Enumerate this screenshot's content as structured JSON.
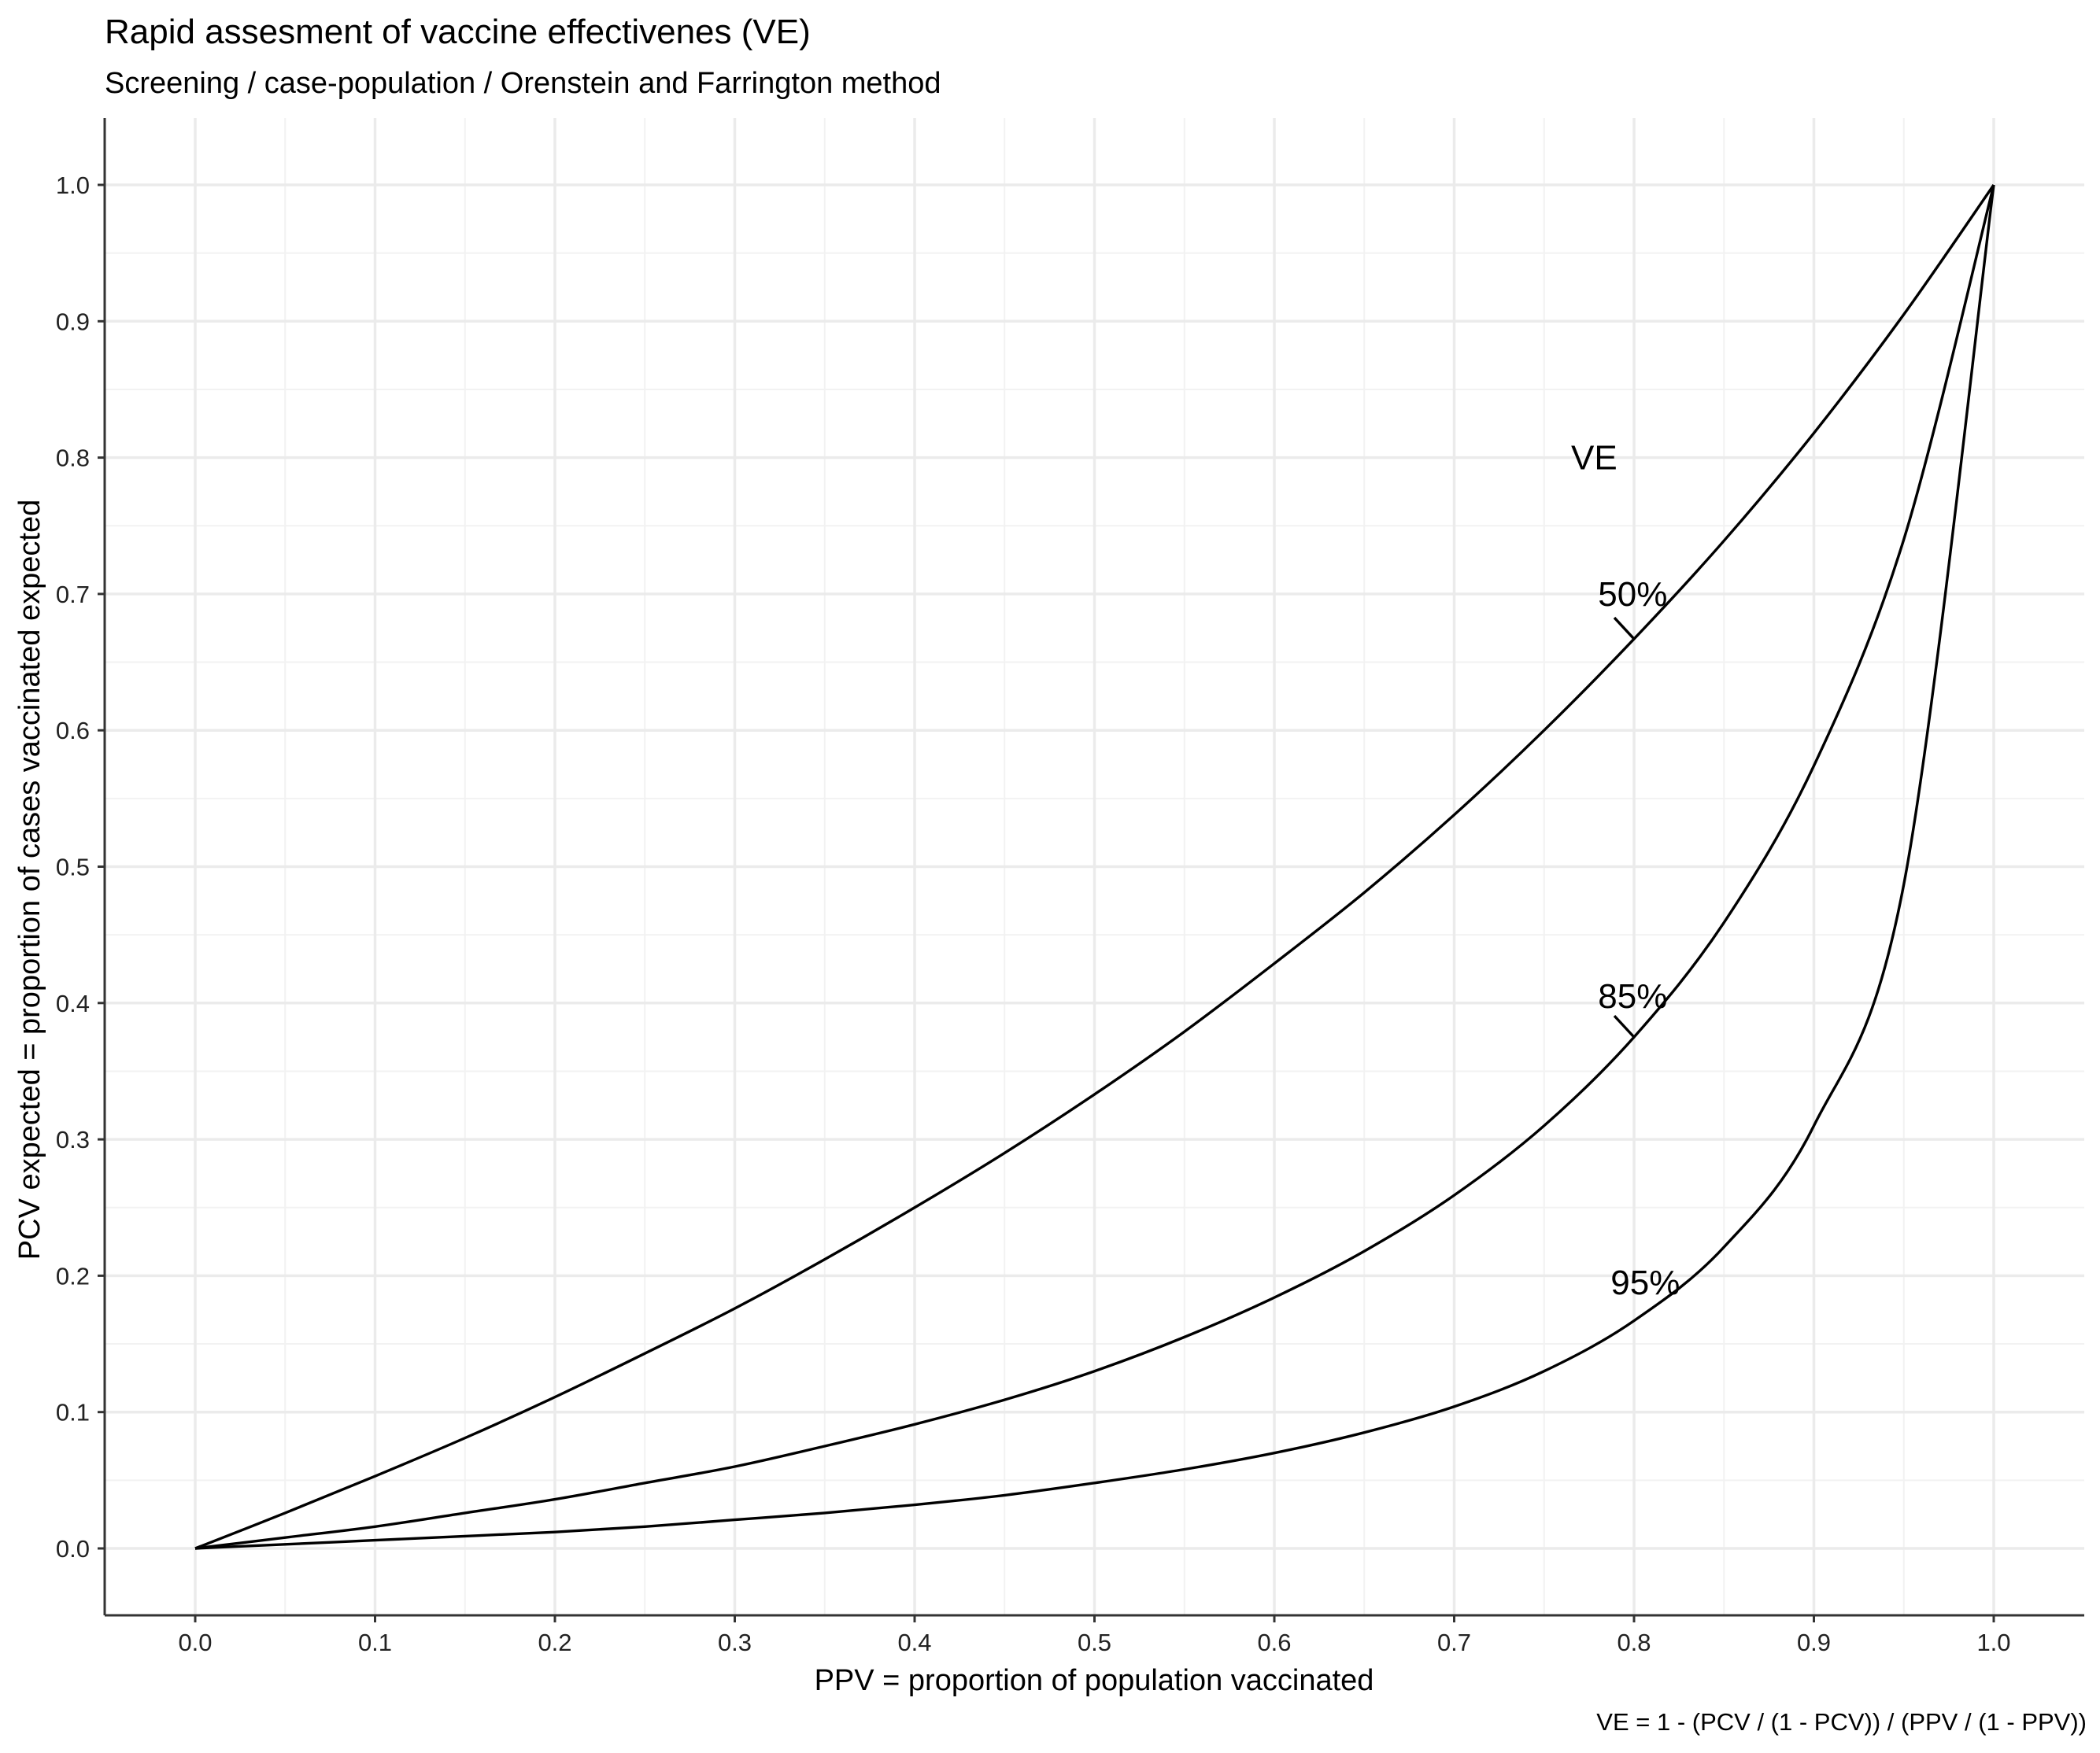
{
  "chart_data": {
    "type": "line",
    "title": "Rapid assesment of vaccine effectivenes (VE)",
    "subtitle": "Screening / case-population / Orenstein and Farrington method",
    "xlabel": "PPV = proportion of population vaccinated",
    "ylabel": "PCV expected = proportion of cases vaccinated expected",
    "caption": "VE = 1 - (PCV / (1 - PCV)) / (PPV / (1 - PPV))",
    "xlim": [
      0,
      1
    ],
    "ylim": [
      0,
      1
    ],
    "x_ticks": [
      "0.0",
      "0.1",
      "0.2",
      "0.3",
      "0.4",
      "0.5",
      "0.6",
      "0.7",
      "0.8",
      "0.9",
      "1.0"
    ],
    "y_ticks": [
      "0.0",
      "0.1",
      "0.2",
      "0.3",
      "0.4",
      "0.5",
      "0.6",
      "0.7",
      "0.8",
      "0.9",
      "1.0"
    ],
    "grid": true,
    "legend_title": "VE",
    "series": [
      {
        "name": "50%",
        "ve": 0.5,
        "x": [
          0,
          0.05,
          0.1,
          0.15,
          0.2,
          0.25,
          0.3,
          0.35,
          0.4,
          0.45,
          0.5,
          0.55,
          0.6,
          0.65,
          0.7,
          0.75,
          0.8,
          0.85,
          0.9,
          0.95,
          1
        ],
        "y": [
          0,
          0.026,
          0.053,
          0.081,
          0.111,
          0.143,
          0.176,
          0.212,
          0.25,
          0.29,
          0.333,
          0.379,
          0.429,
          0.481,
          0.538,
          0.6,
          0.667,
          0.739,
          0.818,
          0.905,
          1
        ]
      },
      {
        "name": "85%",
        "ve": 0.85,
        "x": [
          0,
          0.05,
          0.1,
          0.15,
          0.2,
          0.25,
          0.3,
          0.35,
          0.4,
          0.45,
          0.5,
          0.55,
          0.6,
          0.65,
          0.7,
          0.75,
          0.8,
          0.85,
          0.9,
          0.95,
          1
        ],
        "y": [
          0,
          0.008,
          0.016,
          0.026,
          0.036,
          0.048,
          0.06,
          0.075,
          0.091,
          0.109,
          0.13,
          0.155,
          0.184,
          0.218,
          0.259,
          0.31,
          0.375,
          0.459,
          0.574,
          0.74,
          1
        ]
      },
      {
        "name": "95%",
        "ve": 0.95,
        "x": [
          0,
          0.05,
          0.1,
          0.15,
          0.2,
          0.25,
          0.3,
          0.35,
          0.4,
          0.45,
          0.5,
          0.55,
          0.6,
          0.65,
          0.7,
          0.75,
          0.8,
          0.85,
          0.9,
          0.95,
          1
        ],
        "y": [
          0,
          0.003,
          0.006,
          0.009,
          0.012,
          0.016,
          0.021,
          0.026,
          0.032,
          0.039,
          0.048,
          0.058,
          0.07,
          0.085,
          0.104,
          0.13,
          0.167,
          0.221,
          0.31,
          0.487,
          1
        ]
      }
    ],
    "labels": [
      {
        "text": "VE",
        "x": 0.765,
        "y": 0.8
      },
      {
        "text": "50%",
        "x": 0.78,
        "y": 0.7,
        "point": [
          0.8,
          0.667
        ]
      },
      {
        "text": "85%",
        "x": 0.78,
        "y": 0.405,
        "point": [
          0.8,
          0.375
        ]
      },
      {
        "text": "95%",
        "x": 0.787,
        "y": 0.195
      }
    ]
  }
}
